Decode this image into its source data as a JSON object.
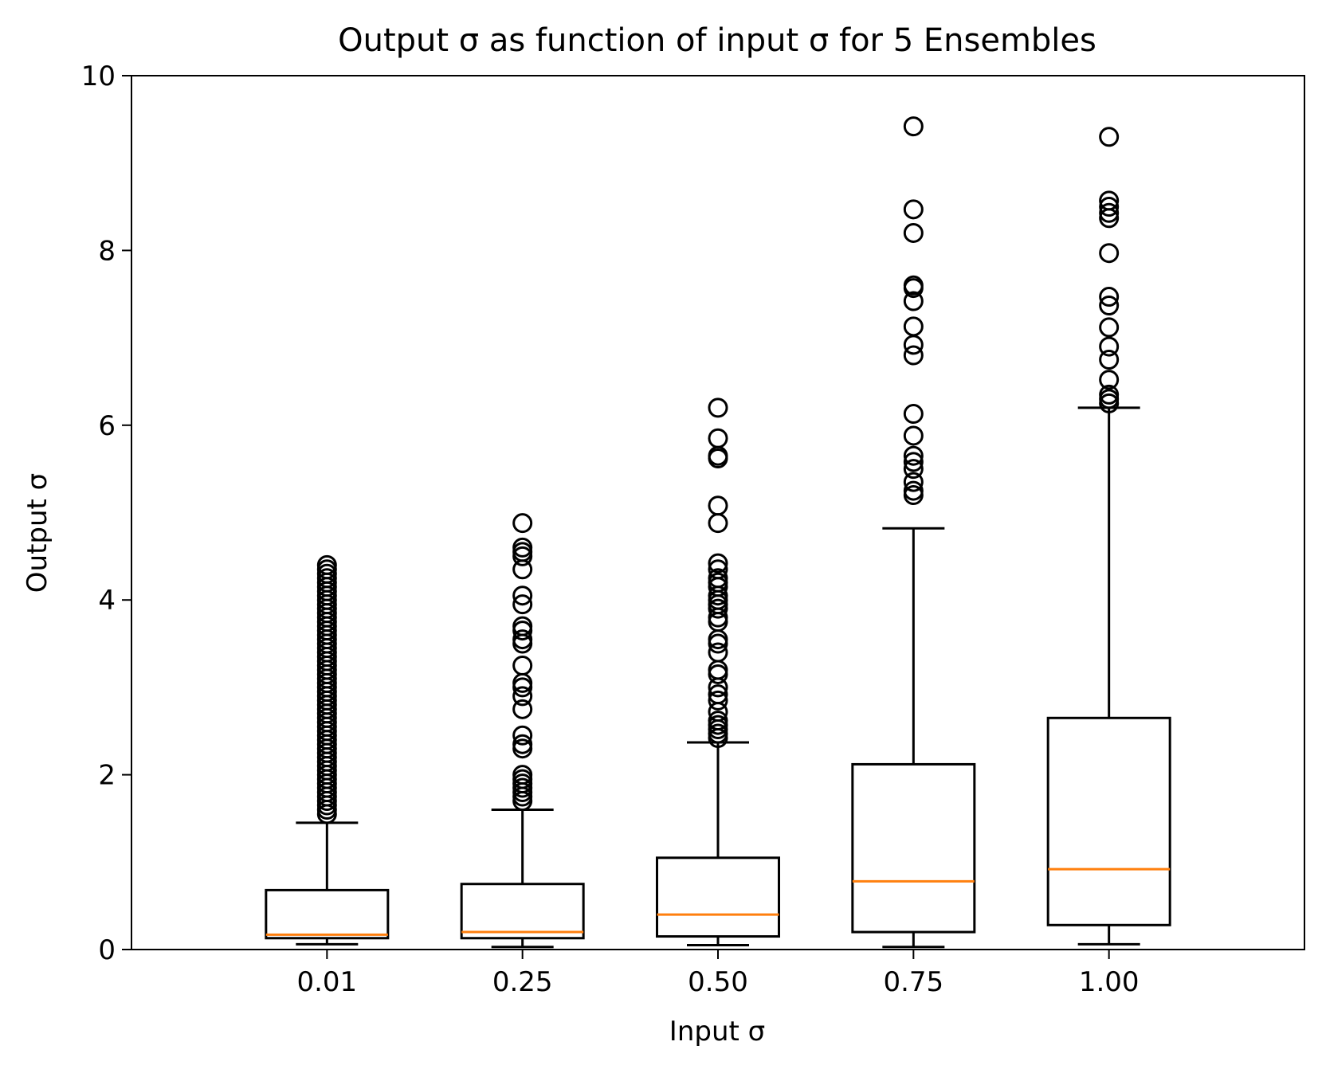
{
  "chart_data": {
    "type": "box",
    "title": "Output σ as function of input σ for 5 Ensembles",
    "xlabel": "Input σ",
    "ylabel": "Output σ",
    "ylim": [
      0,
      10
    ],
    "yticks": [
      "0",
      "2",
      "4",
      "6",
      "8",
      "10"
    ],
    "categories": [
      "0.01",
      "0.25",
      "0.50",
      "0.75",
      "1.00"
    ],
    "grid": false,
    "colors": {
      "box": "#000000",
      "median": "#ff7f0e",
      "flier": "#000000",
      "background": "#ffffff"
    },
    "boxes": [
      {
        "category": "0.01",
        "whisker_low": 0.06,
        "q1": 0.13,
        "median": 0.17,
        "q3": 0.68,
        "whisker_high": 1.45,
        "fliers": [
          1.55,
          1.6,
          1.65,
          1.7,
          1.75,
          1.8,
          1.85,
          1.9,
          1.95,
          2.0,
          2.05,
          2.1,
          2.15,
          2.2,
          2.25,
          2.3,
          2.35,
          2.4,
          2.45,
          2.5,
          2.55,
          2.6,
          2.65,
          2.7,
          2.75,
          2.8,
          2.85,
          2.9,
          2.95,
          3.0,
          3.05,
          3.1,
          3.15,
          3.2,
          3.25,
          3.3,
          3.35,
          3.4,
          3.45,
          3.5,
          3.55,
          3.6,
          3.65,
          3.7,
          3.75,
          3.8,
          3.85,
          3.9,
          3.95,
          4.0,
          4.05,
          4.1,
          4.15,
          4.2,
          4.25,
          4.3,
          4.35,
          4.4
        ]
      },
      {
        "category": "0.25",
        "whisker_low": 0.03,
        "q1": 0.13,
        "median": 0.2,
        "q3": 0.75,
        "whisker_high": 1.6,
        "fliers": [
          1.7,
          1.75,
          1.8,
          1.85,
          1.9,
          1.95,
          2.0,
          2.3,
          2.35,
          2.45,
          2.75,
          2.9,
          3.0,
          3.05,
          3.25,
          3.5,
          3.55,
          3.65,
          3.7,
          3.95,
          4.05,
          4.35,
          4.5,
          4.55,
          4.6,
          4.88
        ]
      },
      {
        "category": "0.50",
        "whisker_low": 0.05,
        "q1": 0.15,
        "median": 0.4,
        "q3": 1.05,
        "whisker_high": 2.37,
        "fliers": [
          2.42,
          2.47,
          2.52,
          2.57,
          2.62,
          2.72,
          2.85,
          2.92,
          3.0,
          3.15,
          3.2,
          3.4,
          3.5,
          3.55,
          3.75,
          3.8,
          3.9,
          3.95,
          4.0,
          4.05,
          4.15,
          4.2,
          4.25,
          4.35,
          4.42,
          4.88,
          5.08,
          5.62,
          5.65,
          5.85,
          6.2
        ]
      },
      {
        "category": "0.75",
        "whisker_low": 0.03,
        "q1": 0.2,
        "median": 0.78,
        "q3": 2.12,
        "whisker_high": 4.82,
        "fliers": [
          5.2,
          5.25,
          5.35,
          5.5,
          5.58,
          5.65,
          5.88,
          6.13,
          6.8,
          6.92,
          7.13,
          7.42,
          7.57,
          7.6,
          8.2,
          8.47,
          9.42
        ]
      },
      {
        "category": "1.00",
        "whisker_low": 0.06,
        "q1": 0.28,
        "median": 0.92,
        "q3": 2.65,
        "whisker_high": 6.2,
        "fliers": [
          6.25,
          6.3,
          6.35,
          6.52,
          6.75,
          6.9,
          7.12,
          7.37,
          7.47,
          7.97,
          8.37,
          8.43,
          8.5,
          8.57,
          9.3
        ]
      }
    ]
  }
}
